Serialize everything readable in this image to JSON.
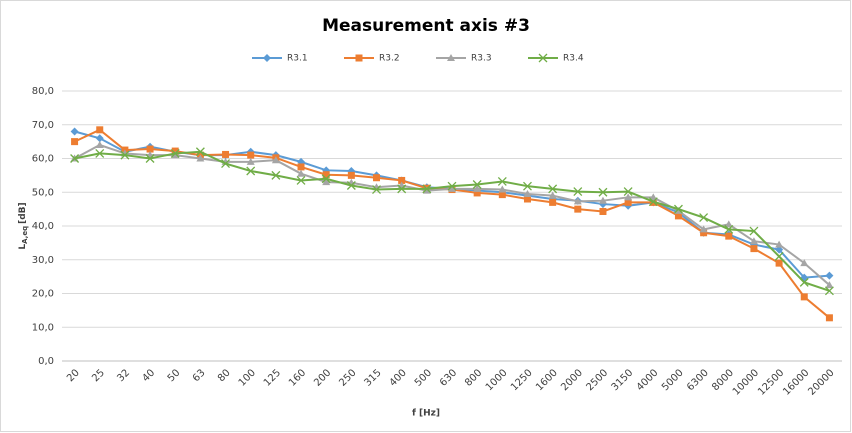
{
  "chart_data": {
    "type": "line",
    "title": "Measurement axis #3",
    "x_label": "f [Hz]",
    "y_label": {
      "symbol": "L",
      "subscript": "A,eq",
      "unit": "[dB]"
    },
    "categories": [
      "20",
      "25",
      "32",
      "40",
      "50",
      "63",
      "80",
      "100",
      "125",
      "160",
      "200",
      "250",
      "315",
      "400",
      "500",
      "630",
      "800",
      "1000",
      "1250",
      "1600",
      "2000",
      "2500",
      "3150",
      "4000",
      "5000",
      "6300",
      "8000",
      "10000",
      "12500",
      "16000",
      "20000"
    ],
    "ylim": [
      0,
      80
    ],
    "yticks": [
      {
        "value": 0,
        "label": "0,0"
      },
      {
        "value": 10,
        "label": "10,0"
      },
      {
        "value": 20,
        "label": "20,0"
      },
      {
        "value": 30,
        "label": "30,0"
      },
      {
        "value": 40,
        "label": "40,0"
      },
      {
        "value": 50,
        "label": "50,0"
      },
      {
        "value": 60,
        "label": "60,0"
      },
      {
        "value": 70,
        "label": "70,0"
      },
      {
        "value": 80,
        "label": "80,0"
      }
    ],
    "grid": true,
    "legend": "top",
    "series": [
      {
        "name": "R3.1",
        "color": "#5b9bd5",
        "marker": "diamond",
        "values": [
          68,
          66,
          62,
          63.5,
          62,
          61,
          61,
          62,
          61,
          59,
          56.5,
          56.3,
          55,
          53.5,
          51.5,
          51,
          50.5,
          50,
          49,
          48,
          47.5,
          46.5,
          46,
          47,
          44,
          38,
          37.5,
          34.5,
          33,
          24.7,
          25.3
        ]
      },
      {
        "name": "R3.2",
        "color": "#ed7d31",
        "marker": "square",
        "values": [
          65,
          68.5,
          62.5,
          62.8,
          62.2,
          61,
          61.2,
          61,
          60.2,
          57.5,
          55.2,
          55,
          54.3,
          53.5,
          51.2,
          50.8,
          49.8,
          49.3,
          48,
          47,
          45,
          44.3,
          47,
          47,
          43,
          38,
          37,
          33.3,
          29,
          19,
          12.8
        ]
      },
      {
        "name": "R3.3",
        "color": "#a5a5a5",
        "marker": "triangle",
        "values": [
          60,
          64,
          61.5,
          61,
          61,
          60,
          59,
          59,
          59.5,
          55.5,
          53,
          52.8,
          51.5,
          52,
          50.5,
          51,
          51,
          50.8,
          49.5,
          49,
          47.3,
          47.5,
          48.5,
          48.5,
          44.5,
          39,
          40.5,
          35.5,
          34.5,
          29,
          22.5
        ]
      },
      {
        "name": "R3.4",
        "color": "#70ad47",
        "marker": "x",
        "values": [
          60,
          61.5,
          61,
          60,
          61.5,
          62,
          58.5,
          56.3,
          55,
          53.5,
          54,
          52,
          50.8,
          51,
          51,
          51.8,
          52.3,
          53.2,
          51.8,
          51,
          50.2,
          50,
          50.2,
          47.2,
          45,
          42.5,
          39,
          38.5,
          31,
          23.3,
          20.8
        ]
      }
    ]
  }
}
